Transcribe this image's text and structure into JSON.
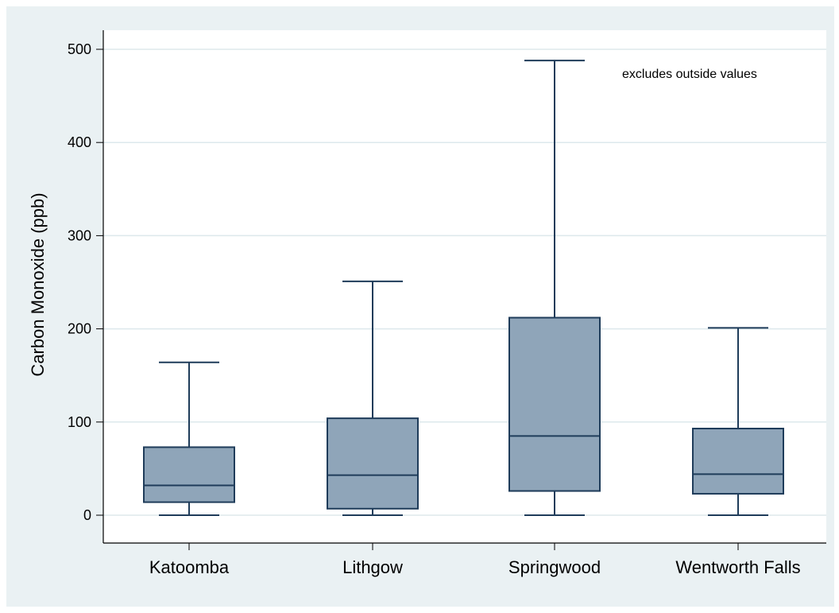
{
  "chart_data": {
    "type": "box",
    "ylabel": "Carbon Monoxide (ppb)",
    "ylim": [
      0,
      520
    ],
    "yticks": [
      0,
      100,
      200,
      300,
      400,
      500
    ],
    "grid": true,
    "note": "excludes outside values",
    "colors": {
      "box_fill": "#8fa5b9",
      "box_stroke": "#1f3c5a",
      "grid": "#dde8ec",
      "background": "#eaf1f3",
      "plot_bg": "#ffffff"
    },
    "categories": [
      "Katoomba",
      "Lithgow",
      "Springwood",
      "Wentworth Falls"
    ],
    "boxes": [
      {
        "category": "Katoomba",
        "whisker_low": 0,
        "q1": 14,
        "median": 32,
        "q3": 73,
        "whisker_high": 164
      },
      {
        "category": "Lithgow",
        "whisker_low": 0,
        "q1": 7,
        "median": 43,
        "q3": 104,
        "whisker_high": 251
      },
      {
        "category": "Springwood",
        "whisker_low": 0,
        "q1": 26,
        "median": 85,
        "q3": 212,
        "whisker_high": 488
      },
      {
        "category": "Wentworth Falls",
        "whisker_low": 0,
        "q1": 23,
        "median": 44,
        "q3": 93,
        "whisker_high": 201
      }
    ]
  }
}
